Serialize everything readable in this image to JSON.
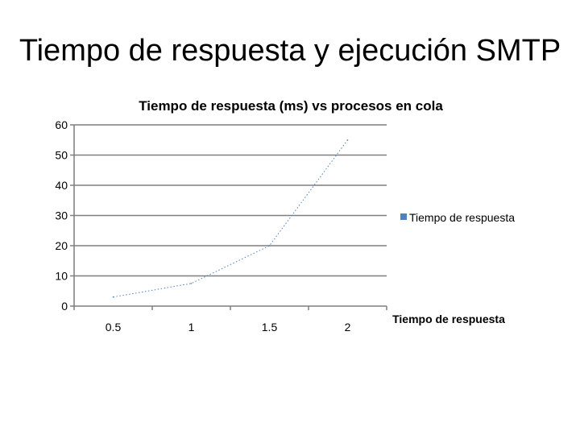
{
  "slide": {
    "title": "Tiempo de respuesta y ejecución SMTP"
  },
  "chart_data": {
    "type": "line",
    "title": "Tiempo de respuesta (ms) vs procesos en cola",
    "xlabel": "Tiempo de respuesta",
    "ylabel": "",
    "categories": [
      "0.5",
      "1",
      "1.5",
      "2"
    ],
    "ylim": [
      0,
      60
    ],
    "yticks": [
      0,
      10,
      20,
      30,
      40,
      50,
      60
    ],
    "grid": true,
    "legend_position": "right",
    "series": [
      {
        "name": "Tiempo de respuesta",
        "color": "#4F81BD",
        "values": [
          3,
          7.5,
          20,
          55
        ]
      }
    ]
  }
}
